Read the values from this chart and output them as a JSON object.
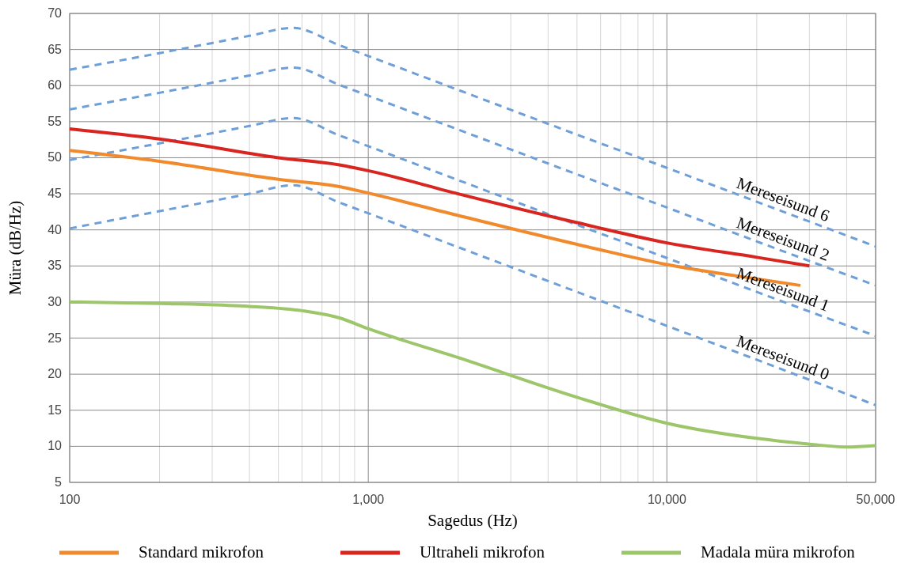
{
  "chart_data": {
    "type": "line",
    "xlabel": "Sagedus (Hz)",
    "ylabel": "Müra (dB/Hz)",
    "log": "x",
    "xlim": [
      100,
      50000
    ],
    "ylim": [
      5,
      70
    ],
    "xticks": [
      {
        "value": 100,
        "label": "100"
      },
      {
        "value": 200,
        "label": null
      },
      {
        "value": 300,
        "label": null
      },
      {
        "value": 400,
        "label": null
      },
      {
        "value": 500,
        "label": null
      },
      {
        "value": 600,
        "label": null
      },
      {
        "value": 700,
        "label": null
      },
      {
        "value": 800,
        "label": null
      },
      {
        "value": 900,
        "label": null
      },
      {
        "value": 1000,
        "label": "1,000"
      },
      {
        "value": 2000,
        "label": null
      },
      {
        "value": 3000,
        "label": null
      },
      {
        "value": 4000,
        "label": null
      },
      {
        "value": 5000,
        "label": null
      },
      {
        "value": 6000,
        "label": null
      },
      {
        "value": 7000,
        "label": null
      },
      {
        "value": 8000,
        "label": null
      },
      {
        "value": 9000,
        "label": null
      },
      {
        "value": 10000,
        "label": "10,000"
      },
      {
        "value": 20000,
        "label": null
      },
      {
        "value": 30000,
        "label": null
      },
      {
        "value": 40000,
        "label": null
      },
      {
        "value": 50000,
        "label": "50,000"
      }
    ],
    "yticks": [
      5,
      10,
      15,
      20,
      25,
      30,
      35,
      40,
      45,
      50,
      55,
      60,
      65,
      70
    ],
    "grid": true,
    "legend": "bottom",
    "marker": "none",
    "series": [
      {
        "name": "Mereseisund 6",
        "color": "#6f9fd8",
        "line_style": "dashed",
        "x": [
          100,
          200,
          300,
          400,
          560,
          800,
          1000,
          2000,
          5000,
          10000,
          20000,
          50000
        ],
        "values": [
          62.2,
          64.5,
          65.9,
          66.9,
          68,
          65.6,
          64.1,
          59.4,
          53.2,
          48.6,
          43.9,
          37.7
        ]
      },
      {
        "name": "Mereseisund 2",
        "color": "#6f9fd8",
        "line_style": "dashed",
        "x": [
          100,
          200,
          300,
          400,
          560,
          800,
          1000,
          2000,
          5000,
          10000,
          20000,
          50000
        ],
        "values": [
          56.7,
          59,
          60.4,
          61.4,
          62.5,
          60.1,
          58.6,
          53.9,
          47.7,
          43.1,
          38.4,
          32.3
        ]
      },
      {
        "name": "Mereseisund 1",
        "color": "#6f9fd8",
        "line_style": "dashed",
        "x": [
          100,
          200,
          300,
          400,
          560,
          800,
          1000,
          2000,
          5000,
          10000,
          20000,
          50000
        ],
        "values": [
          49.7,
          52,
          53.4,
          54.4,
          55.5,
          53.1,
          51.6,
          46.9,
          40.7,
          36.1,
          31.4,
          25.3
        ]
      },
      {
        "name": "Mereseisund 0",
        "color": "#6f9fd8",
        "line_style": "dashed",
        "x": [
          100,
          200,
          300,
          400,
          560,
          800,
          1000,
          2000,
          5000,
          10000,
          20000,
          50000
        ],
        "values": [
          40.2,
          42.6,
          44,
          45,
          46.2,
          43.8,
          42.3,
          37.6,
          31.4,
          26.7,
          22,
          15.7
        ]
      },
      {
        "name": "Standard mikrofon",
        "color": "#f08a2c",
        "line_style": "solid",
        "x": [
          100,
          200,
          500,
          800,
          1000,
          2000,
          5000,
          10000,
          20000,
          28000
        ],
        "values": [
          51,
          49.5,
          47,
          46,
          45.1,
          42,
          38,
          35.2,
          33.2,
          32.3
        ]
      },
      {
        "name": "Ultraheli mikrofon",
        "color": "#d8251f",
        "line_style": "solid",
        "x": [
          100,
          200,
          500,
          800,
          1000,
          2000,
          5000,
          10000,
          20000,
          30000
        ],
        "values": [
          54,
          52.6,
          50,
          49,
          48.2,
          45,
          41,
          38.2,
          36.2,
          35
        ]
      },
      {
        "name": "Madala müra mikrofon",
        "color": "#9dc66b",
        "line_style": "solid",
        "x": [
          100,
          200,
          400,
          600,
          800,
          1000,
          2000,
          5000,
          10000,
          20000,
          30000,
          40000,
          50000
        ],
        "values": [
          30,
          29.8,
          29.4,
          28.8,
          27.8,
          26.3,
          22.3,
          16.8,
          13.2,
          11.1,
          10.3,
          9.9,
          10.1
        ]
      }
    ]
  }
}
